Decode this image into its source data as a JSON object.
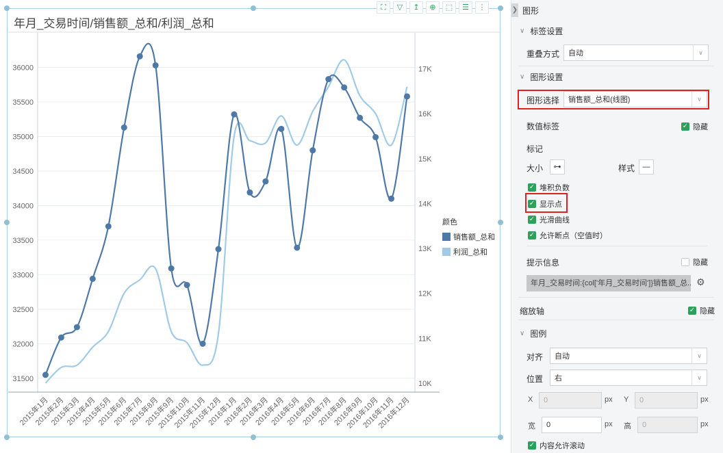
{
  "chart": {
    "title": "年月_交易时间/销售额_总和/利润_总和",
    "toolbar_icons": [
      "expand-icon",
      "filter-icon",
      "drill-icon",
      "zoom-icon",
      "select-icon",
      "list-icon",
      "more-icon"
    ],
    "toolbar_glyphs": [
      "⛶",
      "▽",
      "↥",
      "⊕",
      "⬚",
      "☰",
      "⋮"
    ]
  },
  "legend": {
    "title": "颜色",
    "items": [
      {
        "label": "销售额_总和",
        "color": "#4e79a7"
      },
      {
        "label": "利润_总和",
        "color": "#a0cbe8"
      }
    ]
  },
  "chart_data": {
    "type": "line",
    "title": "年月_交易时间/销售额_总和/利润_总和",
    "categories": [
      "2015年1月",
      "2015年2月",
      "2015年3月",
      "2015年4月",
      "2015年5月",
      "2015年6月",
      "2015年7月",
      "2015年8月",
      "2015年9月",
      "2015年10月",
      "2015年11月",
      "2015年12月",
      "2016年1月",
      "2016年2月",
      "2016年3月",
      "2016年4月",
      "2016年5月",
      "2016年6月",
      "2016年7月",
      "2016年8月",
      "2016年9月",
      "2016年10月",
      "2016年11月",
      "2016年12月"
    ],
    "series": [
      {
        "name": "销售额_总和",
        "axis": "left",
        "color": "#4e79a7",
        "markers": true,
        "values": [
          31550,
          32090,
          32240,
          32940,
          33700,
          35130,
          36160,
          36030,
          33090,
          32850,
          32000,
          33370,
          35320,
          34190,
          34350,
          35110,
          33390,
          34800,
          35830,
          35710,
          35270,
          34990,
          34100,
          35580
        ]
      },
      {
        "name": "利润_总和",
        "axis": "right",
        "color": "#a0cbe8",
        "markers": false,
        "values": [
          10000,
          10350,
          10400,
          10800,
          11150,
          12000,
          12300,
          12550,
          11150,
          10900,
          10400,
          11100,
          15500,
          15400,
          15350,
          15950,
          15300,
          16050,
          16600,
          17200,
          16400,
          16000,
          15300,
          16600
        ]
      }
    ],
    "y_left": {
      "ticks": [
        31500,
        32000,
        32500,
        33000,
        33500,
        34000,
        34500,
        35000,
        35500,
        36000
      ],
      "range": [
        31300,
        36500
      ]
    },
    "y_right": {
      "ticks": [
        "10K",
        "11K",
        "12K",
        "13K",
        "14K",
        "15K",
        "16K",
        "17K"
      ],
      "tick_values": [
        10000,
        11000,
        12000,
        13000,
        14000,
        15000,
        16000,
        17000
      ],
      "range": [
        9800,
        17800
      ]
    },
    "grid": true,
    "legend_position": "right"
  },
  "panel": {
    "header": "图形",
    "label_settings": {
      "title": "标签设置",
      "overlap_label": "重叠方式",
      "overlap_value": "自动"
    },
    "graph_settings": {
      "title": "图形设置",
      "select_label": "图形选择",
      "select_value": "销售额_总和(线图)",
      "value_label": "数值标签",
      "value_hide": "隐藏",
      "mark_title": "标记",
      "size_label": "大小",
      "style_label": "样式",
      "stack_neg": "堆积负数",
      "show_points": "显示点",
      "smooth": "光滑曲线",
      "allow_break": "允许断点（空值时）",
      "tip_title": "提示信息",
      "tip_hide": "隐藏",
      "tip_text": "年月_交易时间:{col['年月_交易时间']}销售额_总..."
    },
    "zoom_axis": {
      "label": "缩放轴",
      "hide": "隐藏"
    },
    "legend_settings": {
      "title": "图例",
      "align_label": "对齐",
      "align_value": "自动",
      "pos_label": "位置",
      "pos_value": "右",
      "x_label": "X",
      "x_value": "0",
      "y_label": "Y",
      "y_value": "0",
      "w_label": "宽",
      "w_value": "0",
      "h_label": "高",
      "h_value": "0",
      "unit": "px",
      "scroll": "内容允许滚动"
    }
  }
}
